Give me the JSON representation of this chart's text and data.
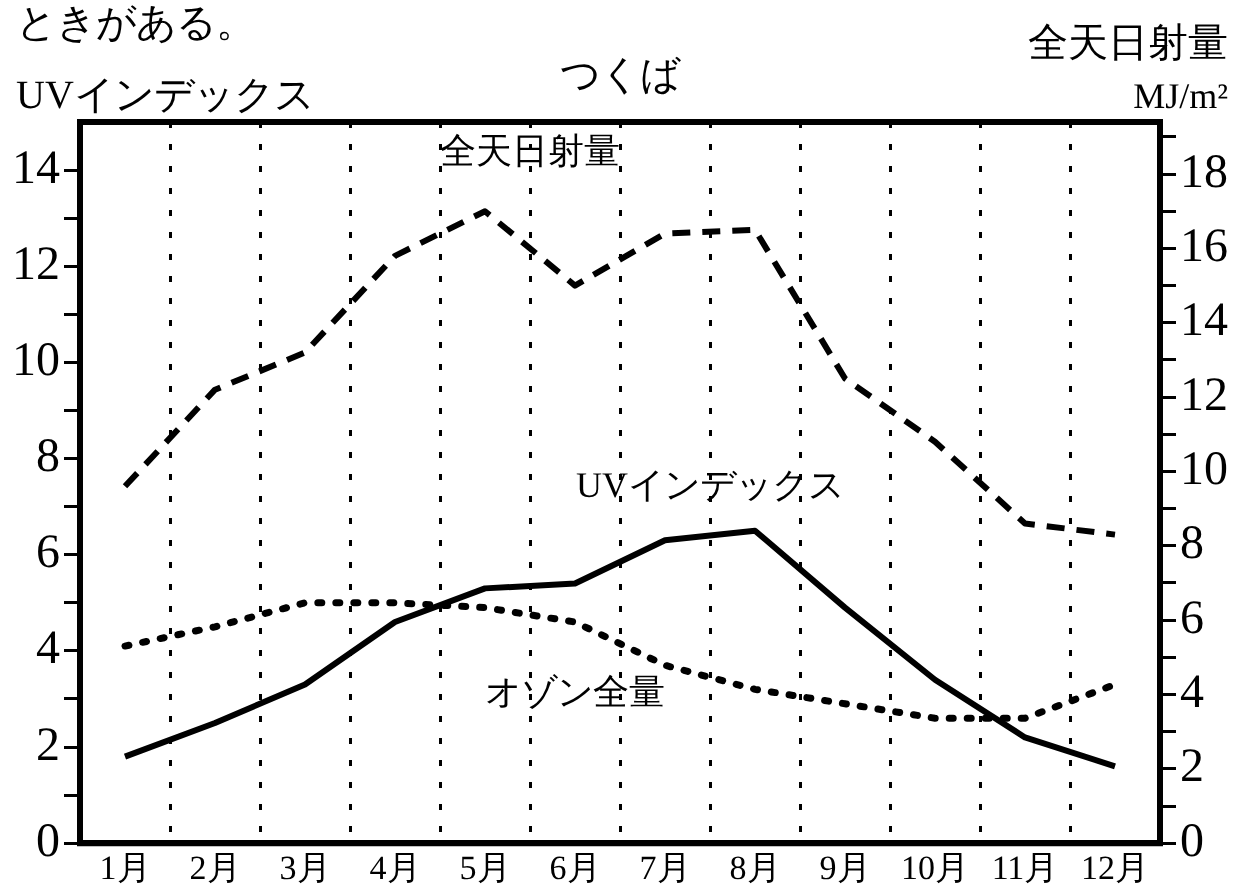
{
  "chart_data": {
    "type": "line",
    "title": "つくば",
    "ylabel": "UVインデックス",
    "y2label": "全天日射量\nMJ/m²",
    "annotations": [
      "ときがある。"
    ],
    "categories": [
      "1月",
      "2月",
      "3月",
      "4月",
      "5月",
      "6月",
      "7月",
      "8月",
      "9月",
      "10月",
      "11月",
      "12月"
    ],
    "series": [
      {
        "name": "全天日射量",
        "color": "#000000",
        "axis": "y2",
        "line_style": "dashed",
        "values": [
          9.6,
          12.2,
          13.2,
          15.8,
          17.0,
          15.0,
          16.4,
          16.5,
          12.5,
          10.8,
          8.6,
          8.3
        ]
      },
      {
        "name": "UVインデックス",
        "color": "#000000",
        "line_style": "solid",
        "values": [
          1.8,
          2.5,
          3.3,
          4.6,
          5.3,
          5.4,
          6.3,
          6.5,
          4.9,
          3.4,
          2.2,
          1.6
        ]
      },
      {
        "name": "オゾン全量",
        "color": "#000000",
        "line_style": "dotted",
        "values": [
          4.1,
          4.5,
          5.0,
          5.0,
          4.9,
          4.6,
          3.7,
          3.2,
          2.9,
          2.6,
          2.6,
          3.3
        ]
      }
    ],
    "ylim": [
      0,
      15
    ],
    "yticks": [
      0,
      {
        "value": 1,
        "label": null
      },
      2,
      {
        "value": 3,
        "label": null
      },
      4,
      {
        "value": 5,
        "label": null
      },
      6,
      {
        "value": 7,
        "label": null
      },
      8,
      {
        "value": 9,
        "label": null
      },
      10,
      {
        "value": 11,
        "label": null
      },
      12,
      {
        "value": 13,
        "label": null
      },
      14
    ],
    "y2lim": [
      0,
      19.4
    ],
    "y2ticks": [
      0,
      {
        "value": 1,
        "label": null
      },
      2,
      {
        "value": 3,
        "label": null
      },
      4,
      {
        "value": 5,
        "label": null
      },
      6,
      {
        "value": 7,
        "label": null
      },
      8,
      {
        "value": 9,
        "label": null
      },
      10,
      {
        "value": 11,
        "label": null
      },
      12,
      {
        "value": 13,
        "label": null
      },
      14,
      {
        "value": 15,
        "label": null
      },
      16,
      {
        "value": 17,
        "label": null
      },
      18,
      {
        "value": 19,
        "label": null
      }
    ],
    "grid": "x",
    "legend": false,
    "marker": "none"
  }
}
